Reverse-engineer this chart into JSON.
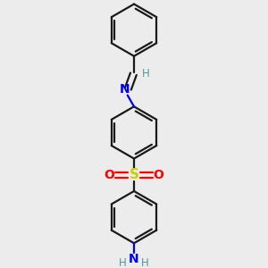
{
  "bg_color": "#ececec",
  "bond_color": "#1a1a1a",
  "nitrogen_color": "#0000ff",
  "oxygen_color": "#ff0000",
  "sulfur_color": "#cccc00",
  "hydrogen_color": "#4d9999",
  "line_width": 1.6,
  "figsize": [
    3.0,
    3.0
  ],
  "dpi": 100,
  "xlim": [
    -1.1,
    1.1
  ],
  "ylim": [
    -1.55,
    1.65
  ]
}
